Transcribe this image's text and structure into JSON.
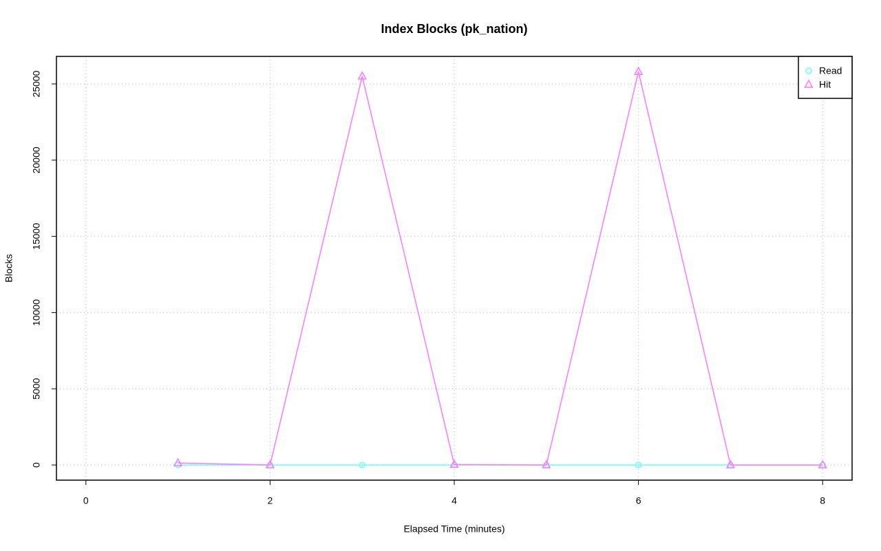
{
  "chart_data": {
    "type": "line",
    "title": "Index Blocks (pk_nation)",
    "x_label": "Elapsed Time (minutes)",
    "y_label": "Blocks",
    "x": [
      1,
      2,
      3,
      4,
      5,
      6,
      7,
      8
    ],
    "series": [
      {
        "name": "Read",
        "color": "#66ffff",
        "marker": "circle",
        "values": [
          0,
          0,
          0,
          0,
          0,
          0,
          0,
          0
        ]
      },
      {
        "name": "Hit",
        "color": "#ff77ff",
        "marker": "triangle",
        "values": [
          130,
          0,
          25500,
          30,
          0,
          25800,
          0,
          0
        ]
      }
    ],
    "xlim": [
      -0.32,
      8.32
    ],
    "ylim": [
      -993,
      26805
    ],
    "xticks": [
      0,
      2,
      4,
      6,
      8
    ],
    "yticks": [
      0,
      5000,
      10000,
      15000,
      20000,
      25000
    ],
    "grid": true,
    "legend": "top-right"
  }
}
